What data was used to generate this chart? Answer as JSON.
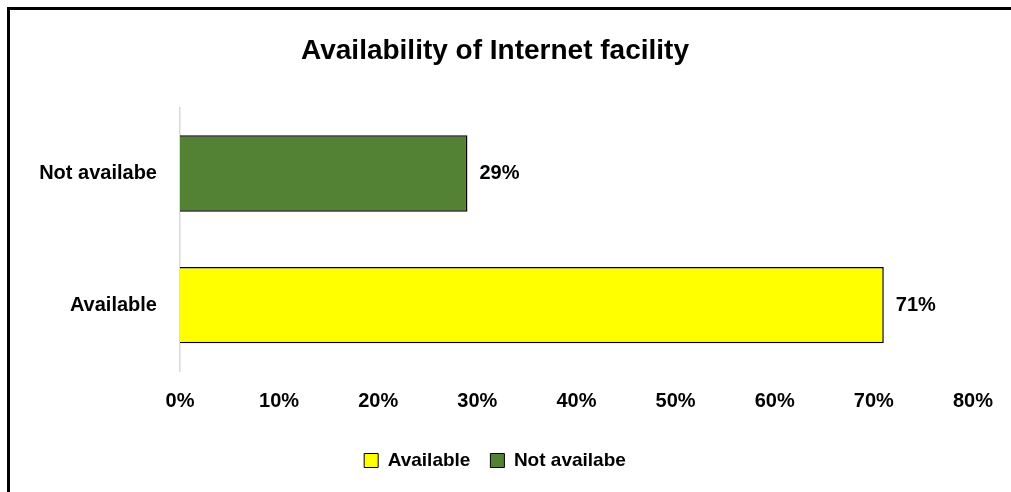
{
  "chart_data": {
    "type": "bar",
    "orientation": "horizontal",
    "title": "Availability of Internet facility",
    "categories": [
      "Not availabe",
      "Available"
    ],
    "series": [
      {
        "name": "Available",
        "color": "#ffff00",
        "values": [
          null,
          71
        ],
        "value_labels": [
          null,
          "71%"
        ]
      },
      {
        "name": "Not availabe",
        "color": "#548235",
        "values": [
          29,
          null
        ],
        "value_labels": [
          "29%",
          null
        ]
      }
    ],
    "xlim": [
      0,
      80
    ],
    "xticks": [
      {
        "value": 0,
        "label": "0%"
      },
      {
        "value": 10,
        "label": "10%"
      },
      {
        "value": 20,
        "label": "20%"
      },
      {
        "value": 30,
        "label": "30%"
      },
      {
        "value": 40,
        "label": "40%"
      },
      {
        "value": 50,
        "label": "50%"
      },
      {
        "value": 60,
        "label": "60%"
      },
      {
        "value": 70,
        "label": "70%"
      },
      {
        "value": 80,
        "label": "80%"
      }
    ],
    "legend": "bottom"
  }
}
